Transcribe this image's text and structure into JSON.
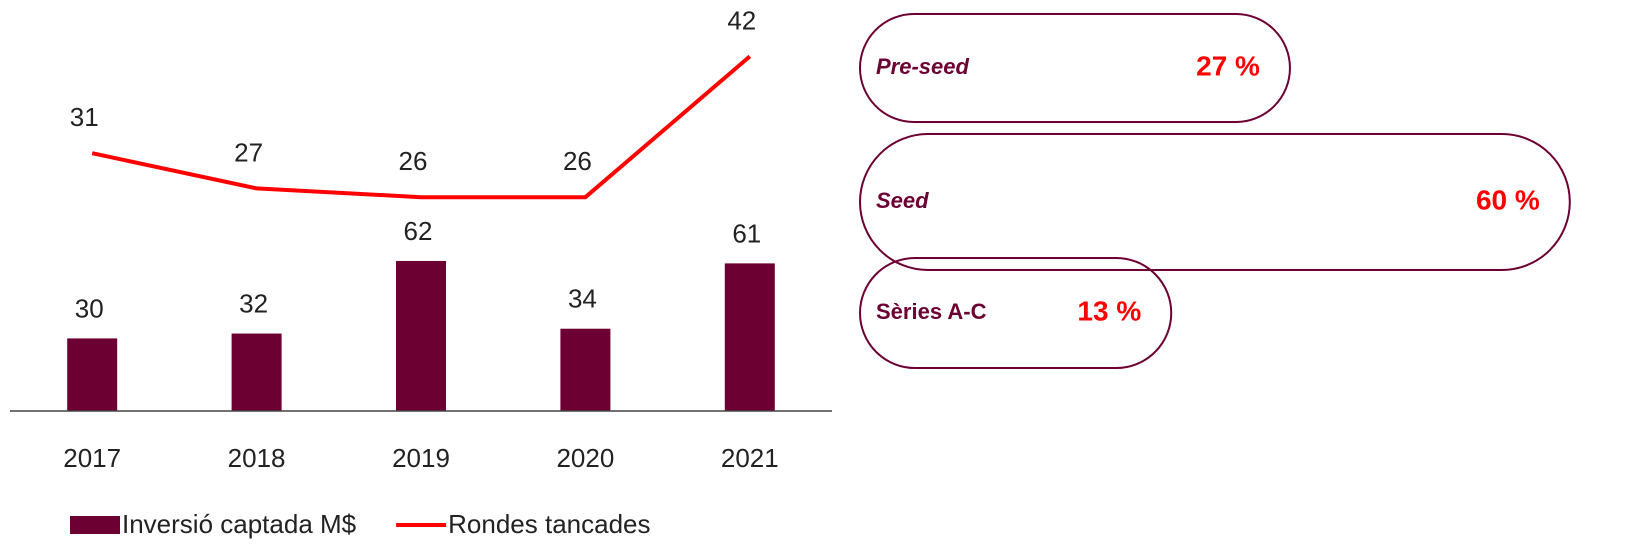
{
  "chart_data": [
    {
      "type": "bar-line",
      "categories": [
        "2017",
        "2018",
        "2019",
        "2020",
        "2021"
      ],
      "series": [
        {
          "name": "Inversió captada M$",
          "color": "#6d0032",
          "values": [
            30,
            32,
            62,
            34,
            61
          ]
        },
        {
          "name": "Rondes tancades",
          "color": "#ff0000",
          "axis": "y2",
          "values": [
            31,
            27,
            26,
            26,
            42
          ]
        }
      ],
      "ylim": [
        0,
        100
      ],
      "y2lim": [
        20,
        45
      ]
    },
    {
      "type": "pill",
      "categories": [
        "Pre-seed",
        "Seed",
        "Sèries A-C"
      ],
      "values": [
        27,
        60,
        13
      ],
      "value_labels": [
        "27 %",
        "60 %",
        "13 %"
      ],
      "color": "#6d0032",
      "label_color": "#ff0000"
    }
  ]
}
